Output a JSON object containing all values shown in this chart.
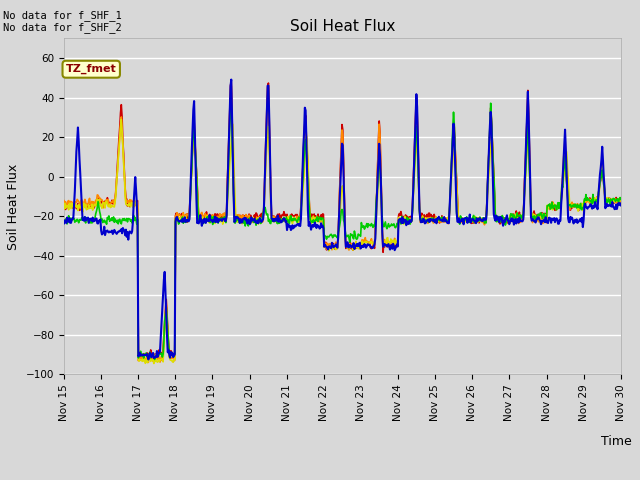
{
  "title": "Soil Heat Flux",
  "ylabel": "Soil Heat Flux",
  "xlabel": "Time",
  "ylim": [
    -100,
    70
  ],
  "yticks": [
    -100,
    -80,
    -60,
    -40,
    -20,
    0,
    20,
    40,
    60
  ],
  "annotation_text": "No data for f_SHF_1\nNo data for f_SHF_2",
  "legend_label": "TZ_fmet",
  "series_colors": {
    "SHF1": "#cc0000",
    "SHF2": "#ff8800",
    "SHF3": "#dddd00",
    "SHF4": "#00cc00",
    "SHF5": "#0000cc"
  },
  "bg_color": "#d8d8d8",
  "plot_bg_color": "#d8d8d8",
  "legend_box_color": "#ffffcc",
  "legend_border_color": "#888800",
  "start_day": 15,
  "end_day": 30,
  "xtick_labels": [
    "Nov 15",
    "Nov 16",
    "Nov 17",
    "Nov 18",
    "Nov 19",
    "Nov 20",
    "Nov 21",
    "Nov 22",
    "Nov 23",
    "Nov 24",
    "Nov 25",
    "Nov 26",
    "Nov 27",
    "Nov 28",
    "Nov 29",
    "Nov 30"
  ]
}
